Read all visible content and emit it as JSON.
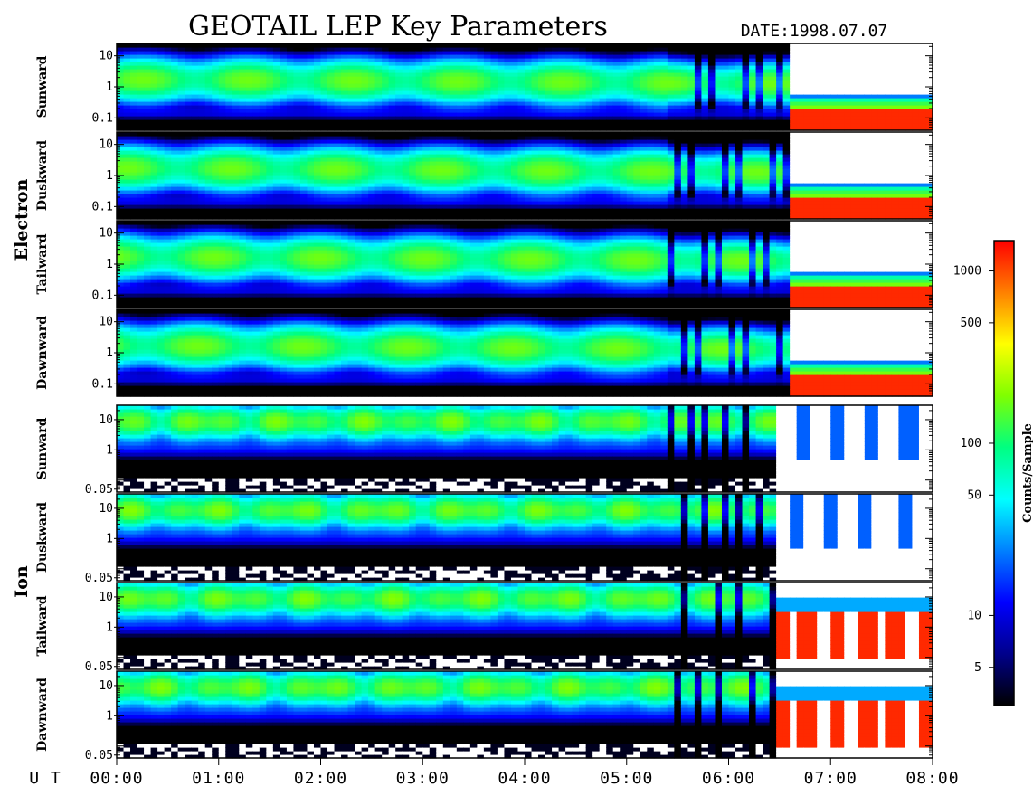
{
  "chart_data": {
    "type": "heatmap",
    "title": "GEOTAIL LEP Key Parameters",
    "date_label": "DATE:1998.07.07",
    "x_axis": {
      "label": "U T",
      "range_hours": [
        0,
        8
      ],
      "ticks": [
        "00:00",
        "01:00",
        "02:00",
        "03:00",
        "04:00",
        "05:00",
        "06:00",
        "07:00",
        "08:00"
      ]
    },
    "colorbar": {
      "label": "Counts/Sample",
      "scale": "log",
      "range": [
        3,
        1500
      ],
      "ticks": [
        5,
        10,
        50,
        100,
        500,
        1000
      ],
      "tick_labels": [
        "5",
        "10",
        "50",
        "100",
        "500",
        "1000"
      ],
      "colormap": [
        "#000000",
        "#00008b",
        "#0000ff",
        "#0080ff",
        "#00ffff",
        "#00ff80",
        "#80ff00",
        "#ffff00",
        "#ff8000",
        "#ff0000"
      ]
    },
    "groups": [
      {
        "species": "Electron",
        "y_scale": "log",
        "y_range": [
          0.04,
          25
        ],
        "y_ticks": [
          0.1,
          1,
          10
        ],
        "y_tick_labels": [
          "0.1",
          "1",
          "10"
        ],
        "panels": [
          {
            "direction": "Sunward"
          },
          {
            "direction": "Duskward"
          },
          {
            "direction": "Tailward"
          },
          {
            "direction": "Dawnward"
          }
        ]
      },
      {
        "species": "Ion",
        "y_scale": "log",
        "y_range": [
          0.04,
          30
        ],
        "y_ticks": [
          0.05,
          1,
          10
        ],
        "y_tick_labels": [
          "0.05",
          "1",
          "10"
        ],
        "panels": [
          {
            "direction": "Sunward"
          },
          {
            "direction": "Duskward"
          },
          {
            "direction": "Tailward"
          },
          {
            "direction": "Dawnward"
          }
        ]
      }
    ],
    "features": {
      "electron_plasma_sheet_peak_counts": 150,
      "electron_dropout_start_hours": 6.6,
      "electron_low_energy_counts_after_dropout": 1200,
      "ion_dropout_start_hours": 6.5,
      "ion_low_energy_counts_tailward_after_dropout": 1200
    }
  }
}
